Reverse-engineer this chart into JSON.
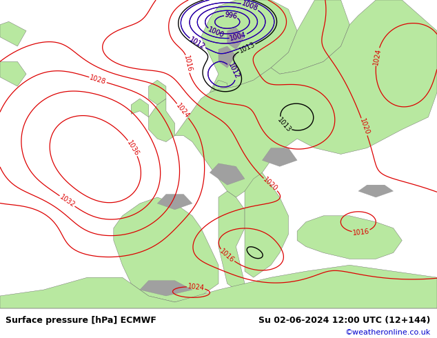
{
  "title_left": "Surface pressure [hPa] ECMWF",
  "title_right": "Su 02-06-2024 12:00 UTC (12+144)",
  "credit": "©weatheronline.co.uk",
  "bg_color": "#ffffff",
  "footer_bg": "#e8e8e8",
  "ocean_color": "#d8d8d8",
  "land_color": "#b8e8a0",
  "mountain_color": "#a0a0a0",
  "contour_color_red": "#dd0000",
  "contour_color_blue": "#0000cc",
  "contour_color_black": "#000000",
  "label_fontsize": 7,
  "footer_fontsize": 9,
  "credit_fontsize": 8,
  "credit_color": "#0000cc",
  "pressure_base": 1020,
  "levels_step": 4,
  "levels_min": 992,
  "levels_max": 1044
}
